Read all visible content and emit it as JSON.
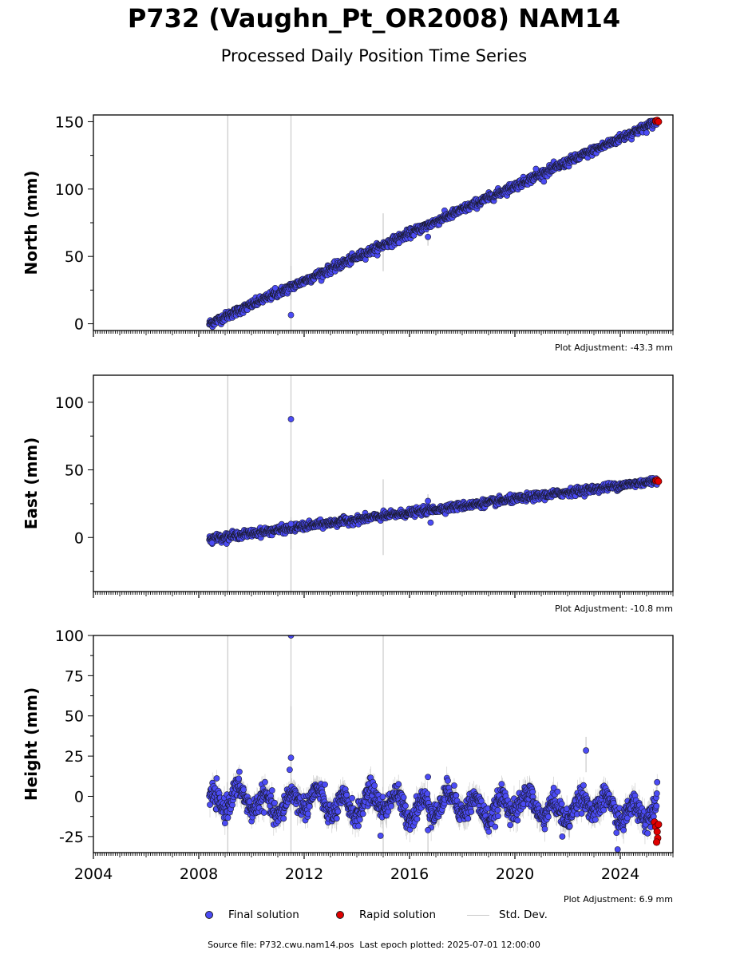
{
  "title": "P732 (Vaughn_Pt_OR2008) NAM14",
  "subtitle": "Processed Daily Position Time Series",
  "footer": {
    "source_file": "Source file: P732.cwu.nam14.pos",
    "last_epoch": "Last epoch plotted: 2025-07-01 12:00:00"
  },
  "legend": {
    "final": "Final solution",
    "rapid": "Rapid solution",
    "stddev": "Std. Dev."
  },
  "colors": {
    "final": "#4b4bf5",
    "rapid": "#e00000",
    "stddev": "#c8c8c8",
    "marker_edge": "#1a1a2e"
  },
  "chart_data": [
    {
      "type": "scatter",
      "ylabel": "North (mm)",
      "xlim": [
        2004,
        2026
      ],
      "ylim": [
        -5,
        155
      ],
      "yticks": [
        0,
        50,
        100,
        150
      ],
      "adjustment": "Plot Adjustment: -43.3 mm",
      "trend": {
        "start": [
          2008.4,
          0
        ],
        "end": [
          2025.4,
          150
        ]
      },
      "noise_mm": 1.6,
      "errorbar_mm": 1.2,
      "outliers": [
        {
          "x": 2011.5,
          "y": 6.5
        },
        {
          "x": 2015.6,
          "y": 60
        },
        {
          "x": 2016.7,
          "y": 64.5
        },
        {
          "x": 2010.9,
          "y": 26.5
        },
        {
          "x": 2020.8,
          "y": 115
        }
      ],
      "bars": [
        {
          "x": 2009.1,
          "y1": -10,
          "y2": 160
        },
        {
          "x": 2011.5,
          "y1": -10,
          "y2": 160
        },
        {
          "x": 2011.5,
          "y1": 18,
          "y2": 43
        },
        {
          "x": 2015.0,
          "y1": 39,
          "y2": 82
        },
        {
          "x": 2016.7,
          "y1": 58,
          "y2": 71
        }
      ],
      "rapid": [
        {
          "x": 2025.35,
          "y": 150.5
        },
        {
          "x": 2025.4,
          "y": 151
        },
        {
          "x": 2025.45,
          "y": 150
        }
      ]
    },
    {
      "type": "scatter",
      "ylabel": "East (mm)",
      "xlim": [
        2004,
        2026
      ],
      "ylim": [
        -40,
        120
      ],
      "yticks": [
        0,
        50,
        100
      ],
      "adjustment": "Plot Adjustment: -10.8 mm",
      "trend": {
        "start": [
          2008.4,
          -1
        ],
        "end": [
          2025.4,
          42
        ]
      },
      "noise_mm": 1.4,
      "errorbar_mm": 1.2,
      "outliers": [
        {
          "x": 2011.5,
          "y": 87.5
        },
        {
          "x": 2016.7,
          "y": 27
        },
        {
          "x": 2016.8,
          "y": 11
        },
        {
          "x": 2008.5,
          "y": -4
        },
        {
          "x": 2011.5,
          "y": 10
        }
      ],
      "bars": [
        {
          "x": 2009.1,
          "y1": -45,
          "y2": 125
        },
        {
          "x": 2011.5,
          "y1": -45,
          "y2": 125
        },
        {
          "x": 2011.5,
          "y1": -9,
          "y2": 15
        },
        {
          "x": 2015.0,
          "y1": -13,
          "y2": 43
        },
        {
          "x": 2016.7,
          "y1": 14,
          "y2": 32
        }
      ],
      "rapid": [
        {
          "x": 2025.35,
          "y": 42
        },
        {
          "x": 2025.4,
          "y": 42.5
        },
        {
          "x": 2025.45,
          "y": 41.5
        }
      ]
    },
    {
      "type": "scatter",
      "ylabel": "Height (mm)",
      "xlim": [
        2004,
        2026
      ],
      "ylim": [
        -35,
        100
      ],
      "yticks": [
        -25,
        0,
        25,
        50,
        75,
        100
      ],
      "xticks": [
        2004,
        2008,
        2012,
        2016,
        2020,
        2024
      ],
      "adjustment": "Plot Adjustment: 6.9 mm",
      "trend": {
        "start": [
          2008.4,
          -3
        ],
        "end": [
          2025.4,
          -8
        ]
      },
      "seasonal_amplitude_mm": 6,
      "noise_mm": 3.5,
      "errorbar_mm": 6,
      "outliers": [
        {
          "x": 2011.5,
          "y": 100
        },
        {
          "x": 2011.5,
          "y": 24
        },
        {
          "x": 2011.45,
          "y": 16.5
        },
        {
          "x": 2014.9,
          "y": -24.5
        },
        {
          "x": 2016.7,
          "y": -21
        },
        {
          "x": 2021.8,
          "y": -25
        },
        {
          "x": 2022.7,
          "y": 28.5
        },
        {
          "x": 2023.9,
          "y": -33
        },
        {
          "x": 2016.7,
          "y": 12
        }
      ],
      "bars": [
        {
          "x": 2009.1,
          "y1": -40,
          "y2": 105
        },
        {
          "x": 2011.5,
          "y1": -40,
          "y2": 105
        },
        {
          "x": 2011.5,
          "y1": -10,
          "y2": 56
        },
        {
          "x": 2015.0,
          "y1": -40,
          "y2": 105
        },
        {
          "x": 2016.7,
          "y1": -35,
          "y2": -8
        },
        {
          "x": 2022.7,
          "y1": 15,
          "y2": 37
        }
      ],
      "rapid": [
        {
          "x": 2025.3,
          "y": -16
        },
        {
          "x": 2025.35,
          "y": -19
        },
        {
          "x": 2025.4,
          "y": -22
        },
        {
          "x": 2025.42,
          "y": -26
        },
        {
          "x": 2025.45,
          "y": -17.5
        },
        {
          "x": 2025.38,
          "y": -28.5
        }
      ]
    }
  ]
}
